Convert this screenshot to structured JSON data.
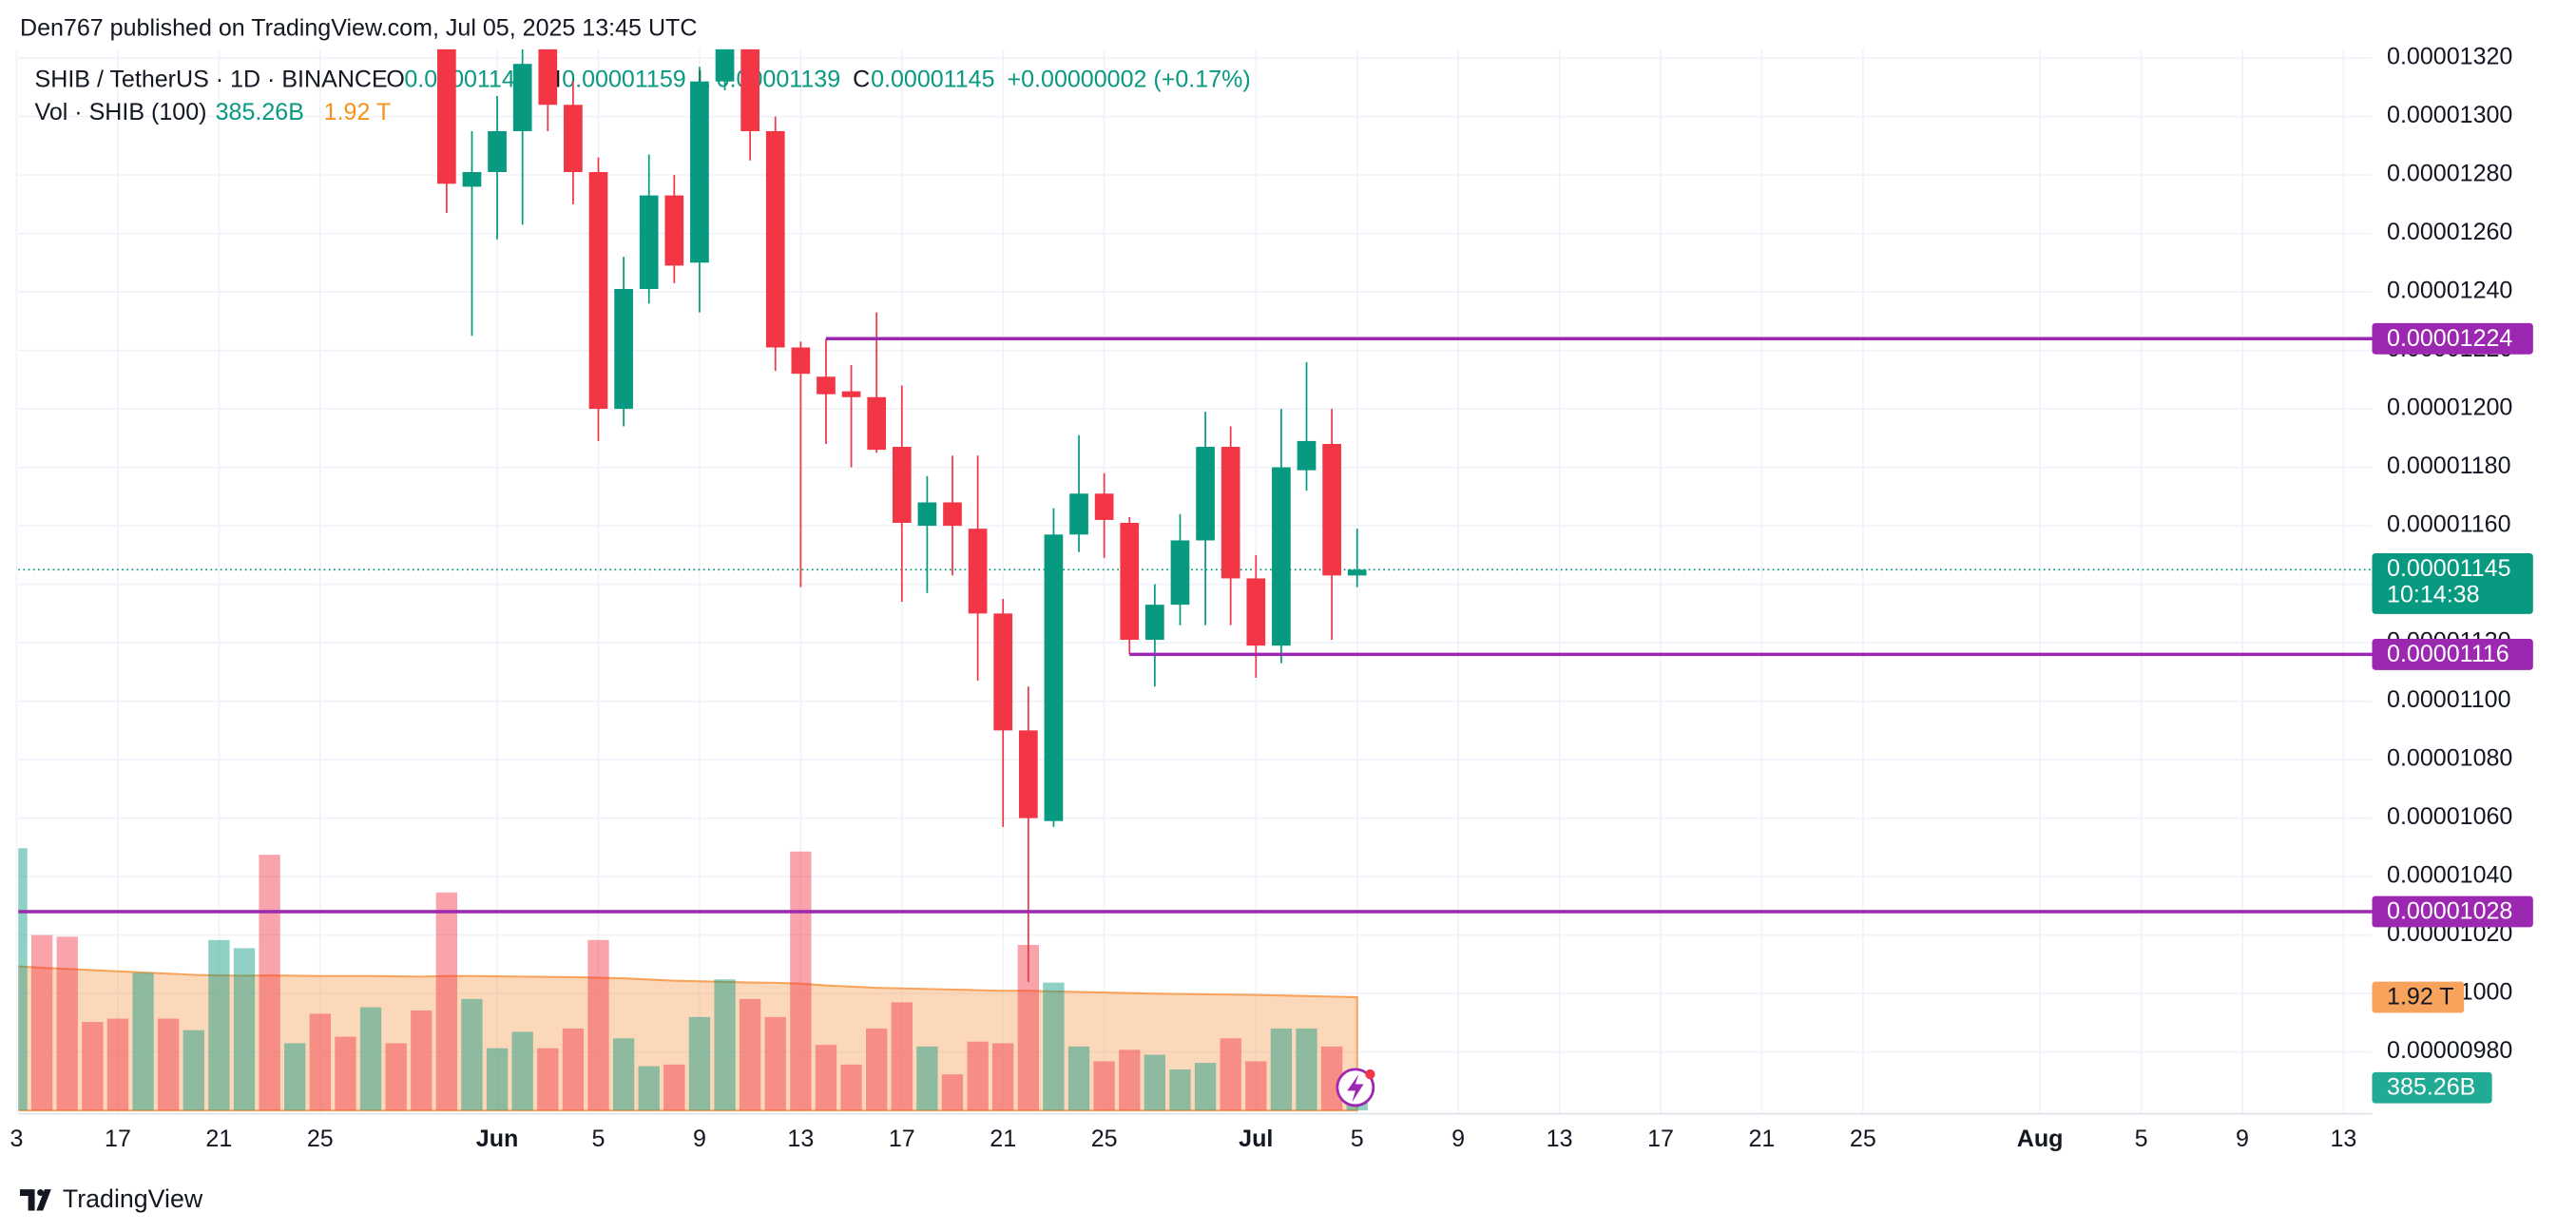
{
  "header": {
    "attribution": "Den767 published on TradingView.com, Jul 05, 2025 13:45 UTC",
    "footer": "TradingView"
  },
  "chart_data": {
    "type": "candlestick",
    "symbol": "SHIB / TetherUS · 1D · BINANCE",
    "legend_labels": {
      "open": "O",
      "high": "H",
      "low": "L",
      "close": "C"
    },
    "change": "+0.00000002 (+0.17%)",
    "countdown": "10:14:38",
    "x": [
      "2025-05-13",
      "2025-05-14",
      "2025-05-15",
      "2025-05-16",
      "2025-05-17",
      "2025-05-18",
      "2025-05-19",
      "2025-05-20",
      "2025-05-21",
      "2025-05-22",
      "2025-05-23",
      "2025-05-24",
      "2025-05-25",
      "2025-05-26",
      "2025-05-27",
      "2025-05-28",
      "2025-05-29",
      "2025-05-30",
      "2025-05-31",
      "2025-06-01",
      "2025-06-02",
      "2025-06-03",
      "2025-06-04",
      "2025-06-05",
      "2025-06-06",
      "2025-06-07",
      "2025-06-08",
      "2025-06-09",
      "2025-06-10",
      "2025-06-11",
      "2025-06-12",
      "2025-06-13",
      "2025-06-14",
      "2025-06-15",
      "2025-06-16",
      "2025-06-17",
      "2025-06-18",
      "2025-06-19",
      "2025-06-20",
      "2025-06-21",
      "2025-06-22",
      "2025-06-23",
      "2025-06-24",
      "2025-06-25",
      "2025-06-26",
      "2025-06-27",
      "2025-06-28",
      "2025-06-29",
      "2025-06-30",
      "2025-07-01",
      "2025-07-02",
      "2025-07-03",
      "2025-07-04",
      "2025-07-05"
    ],
    "open": [
      null,
      null,
      null,
      null,
      null,
      null,
      null,
      null,
      null,
      null,
      null,
      null,
      null,
      null,
      null,
      null,
      null,
      1.328e-05,
      1.276e-05,
      1.281e-05,
      1.295e-05,
      1.328e-05,
      1.304e-05,
      1.281e-05,
      1.2e-05,
      1.241e-05,
      1.273e-05,
      1.25e-05,
      1.312e-05,
      1.326e-05,
      1.295e-05,
      1.221e-05,
      1.211e-05,
      1.206e-05,
      1.204e-05,
      1.187e-05,
      1.16e-05,
      1.168e-05,
      1.159e-05,
      1.13e-05,
      1.09e-05,
      1.059e-05,
      1.157e-05,
      1.171e-05,
      1.161e-05,
      1.121e-05,
      1.133e-05,
      1.155e-05,
      1.187e-05,
      1.142e-05,
      1.119e-05,
      1.179e-05,
      1.188e-05,
      1.143e-05
    ],
    "high": [
      null,
      null,
      null,
      null,
      null,
      null,
      null,
      null,
      null,
      null,
      null,
      null,
      null,
      null,
      null,
      null,
      null,
      1.335e-05,
      1.295e-05,
      1.307e-05,
      1.324e-05,
      1.33e-05,
      1.312e-05,
      1.286e-05,
      1.252e-05,
      1.287e-05,
      1.28e-05,
      1.317e-05,
      1.335e-05,
      1.332e-05,
      1.3e-05,
      1.223e-05,
      1.224e-05,
      1.215e-05,
      1.233e-05,
      1.208e-05,
      1.177e-05,
      1.184e-05,
      1.184e-05,
      1.135e-05,
      1.105e-05,
      1.166e-05,
      1.191e-05,
      1.178e-05,
      1.163e-05,
      1.14e-05,
      1.164e-05,
      1.199e-05,
      1.194e-05,
      1.15e-05,
      1.2e-05,
      1.216e-05,
      1.2e-05,
      1.159e-05
    ],
    "low": [
      null,
      null,
      null,
      null,
      null,
      null,
      null,
      null,
      null,
      null,
      null,
      null,
      null,
      null,
      null,
      null,
      null,
      1.267e-05,
      1.225e-05,
      1.258e-05,
      1.263e-05,
      1.295e-05,
      1.27e-05,
      1.189e-05,
      1.194e-05,
      1.236e-05,
      1.243e-05,
      1.233e-05,
      1.309e-05,
      1.285e-05,
      1.213e-05,
      1.139e-05,
      1.188e-05,
      1.18e-05,
      1.185e-05,
      1.134e-05,
      1.137e-05,
      1.143e-05,
      1.107e-05,
      1.057e-05,
      1.004e-05,
      1.057e-05,
      1.151e-05,
      1.149e-05,
      1.116e-05,
      1.105e-05,
      1.126e-05,
      1.126e-05,
      1.126e-05,
      1.108e-05,
      1.113e-05,
      1.172e-05,
      1.121e-05,
      1.139e-05
    ],
    "close": [
      null,
      null,
      null,
      null,
      null,
      null,
      null,
      null,
      null,
      null,
      null,
      null,
      null,
      null,
      null,
      null,
      null,
      1.277e-05,
      1.281e-05,
      1.295e-05,
      1.318e-05,
      1.304e-05,
      1.281e-05,
      1.2e-05,
      1.241e-05,
      1.273e-05,
      1.249e-05,
      1.312e-05,
      1.326e-05,
      1.295e-05,
      1.221e-05,
      1.212e-05,
      1.205e-05,
      1.204e-05,
      1.186e-05,
      1.161e-05,
      1.168e-05,
      1.16e-05,
      1.13e-05,
      1.09e-05,
      1.06e-05,
      1.157e-05,
      1.171e-05,
      1.162e-05,
      1.121e-05,
      1.133e-05,
      1.155e-05,
      1.187e-05,
      1.142e-05,
      1.119e-05,
      1.18e-05,
      1.189e-05,
      1.143e-05,
      1.145e-05
    ],
    "up_color": "#089981",
    "down_color": "#f23645",
    "ylim": [
      9.6e-06,
      1.323e-05
    ],
    "yticks": [
      {
        "value": 9.8e-06,
        "label": "0.00000980"
      },
      {
        "value": 1e-05,
        "label": "0.00001000"
      },
      {
        "value": 1.02e-05,
        "label": "0.00001020"
      },
      {
        "value": 1.04e-05,
        "label": "0.00001040"
      },
      {
        "value": 1.06e-05,
        "label": "0.00001060"
      },
      {
        "value": 1.08e-05,
        "label": "0.00001080"
      },
      {
        "value": 1.1e-05,
        "label": "0.00001100"
      },
      {
        "value": 1.12e-05,
        "label": "0.00001120"
      },
      {
        "value": 1.14e-05,
        "label": "0.00001140"
      },
      {
        "value": 1.16e-05,
        "label": "0.00001160"
      },
      {
        "value": 1.18e-05,
        "label": "0.00001180"
      },
      {
        "value": 1.2e-05,
        "label": "0.00001200"
      },
      {
        "value": 1.22e-05,
        "label": "0.00001220"
      },
      {
        "value": 1.24e-05,
        "label": "0.00001240"
      },
      {
        "value": 1.26e-05,
        "label": "0.00001260"
      },
      {
        "value": 1.28e-05,
        "label": "0.00001280"
      },
      {
        "value": 1.3e-05,
        "label": "0.00001300"
      },
      {
        "value": 1.32e-05,
        "label": "0.00001320"
      }
    ],
    "xlim": [
      "2025-05-13",
      "2025-08-14"
    ],
    "xticks": [
      {
        "value": "2025-05-13",
        "label": "3"
      },
      {
        "value": "2025-05-17",
        "label": "17"
      },
      {
        "value": "2025-05-21",
        "label": "21"
      },
      {
        "value": "2025-05-25",
        "label": "25"
      },
      {
        "value": "2025-06-01",
        "label": "Jun"
      },
      {
        "value": "2025-06-05",
        "label": "5"
      },
      {
        "value": "2025-06-09",
        "label": "9"
      },
      {
        "value": "2025-06-13",
        "label": "13"
      },
      {
        "value": "2025-06-17",
        "label": "17"
      },
      {
        "value": "2025-06-21",
        "label": "21"
      },
      {
        "value": "2025-06-25",
        "label": "25"
      },
      {
        "value": "2025-07-01",
        "label": "Jul"
      },
      {
        "value": "2025-07-05",
        "label": "5"
      },
      {
        "value": "2025-07-09",
        "label": "9"
      },
      {
        "value": "2025-07-13",
        "label": "13"
      },
      {
        "value": "2025-07-17",
        "label": "17"
      },
      {
        "value": "2025-07-21",
        "label": "21"
      },
      {
        "value": "2025-07-25",
        "label": "25"
      },
      {
        "value": "2025-08-01",
        "label": "Aug"
      },
      {
        "value": "2025-08-05",
        "label": "5"
      },
      {
        "value": "2025-08-09",
        "label": "9"
      },
      {
        "value": "2025-08-13",
        "label": "13"
      }
    ],
    "grid": true,
    "levels": [
      {
        "value": 1.224e-05,
        "start": "2025-06-14"
      },
      {
        "value": 1.116e-05,
        "start": "2025-06-26"
      },
      {
        "value": 1.028e-05,
        "start": "2025-05-13"
      }
    ],
    "level_color": "#9c27b0",
    "volume": {
      "name": "Vol · SHIB (100)",
      "ylim": [
        0,
        18000000000000
      ],
      "values": [
        4448000000000,
        2975000000000,
        2947000000000,
        1501000000000,
        1557000000000,
        2335000000000,
        1557000000000,
        1362000000000,
        2891000000000,
        2752000000000,
        4337000000000,
        1140000000000,
        1640000000000,
        1251000000000,
        1751000000000,
        1140000000000,
        1696000000000,
        3697000000000,
        1890000000000,
        1056000000000,
        1334000000000,
        1056000000000,
        1390000000000,
        2891000000000,
        1223000000000,
        751000000000,
        778000000000,
        1585000000000,
        2224000000000,
        1890000000000,
        1585000000000,
        4392000000000,
        1112000000000,
        778000000000,
        1390000000000,
        1835000000000,
        1084000000000,
        612000000000,
        1168000000000,
        1140000000000,
        2808000000000,
        2168000000000,
        1084000000000,
        834000000000,
        1029000000000,
        945000000000,
        695000000000,
        806000000000,
        1223000000000,
        834000000000,
        1390000000000,
        1390000000000,
        1084000000000,
        385260000000
      ],
      "value_labels": [
        null,
        null,
        null,
        null,
        null,
        null,
        null,
        null,
        null,
        null,
        null,
        null,
        null,
        null,
        null,
        null,
        null,
        null,
        null,
        null,
        null,
        null,
        null,
        null,
        null,
        null,
        null,
        null,
        null,
        null,
        null,
        null,
        null,
        null,
        null,
        null,
        null,
        null,
        null,
        null,
        null,
        null,
        null,
        null,
        null,
        null,
        null,
        null,
        null,
        null,
        null,
        null,
        null,
        "385.26B"
      ],
      "colors": [
        "#089981",
        "#f23645",
        "#f23645",
        "#f23645",
        "#f23645",
        "#089981",
        "#f23645",
        "#089981",
        "#089981",
        "#089981",
        "#f23645",
        "#089981",
        "#f23645",
        "#f23645",
        "#089981",
        "#f23645",
        "#f23645",
        "#f23645",
        "#089981",
        "#089981",
        "#089981",
        "#f23645",
        "#f23645",
        "#f23645",
        "#089981",
        "#089981",
        "#f23645",
        "#089981",
        "#089981",
        "#f23645",
        "#f23645",
        "#f23645",
        "#f23645",
        "#f23645",
        "#f23645",
        "#f23645",
        "#089981",
        "#f23645",
        "#f23645",
        "#f23645",
        "#f23645",
        "#089981",
        "#089981",
        "#f23645",
        "#f23645",
        "#089981",
        "#089981",
        "#089981",
        "#f23645",
        "#f23645",
        "#089981",
        "#089981",
        "#f23645",
        "#089981"
      ]
    },
    "volume_ma": {
      "color": "#f7a35c",
      "values": [
        2446000000000,
        2420000000000,
        2400000000000,
        2380000000000,
        2360000000000,
        2340000000000,
        2320000000000,
        2300000000000,
        2290000000000,
        2285000000000,
        2290000000000,
        2285000000000,
        2280000000000,
        2280000000000,
        2280000000000,
        2275000000000,
        2270000000000,
        2280000000000,
        2280000000000,
        2275000000000,
        2270000000000,
        2265000000000,
        2260000000000,
        2250000000000,
        2240000000000,
        2220000000000,
        2200000000000,
        2190000000000,
        2180000000000,
        2170000000000,
        2165000000000,
        2150000000000,
        2120000000000,
        2100000000000,
        2080000000000,
        2070000000000,
        2060000000000,
        2050000000000,
        2040000000000,
        2030000000000,
        2030000000000,
        2020000000000,
        2010000000000,
        2000000000000,
        1990000000000,
        1980000000000,
        1975000000000,
        1970000000000,
        1965000000000,
        1960000000000,
        1950000000000,
        1940000000000,
        1930000000000,
        1920000000000
      ],
      "value_labels": [
        null,
        null,
        null,
        null,
        null,
        null,
        null,
        null,
        null,
        null,
        null,
        null,
        null,
        null,
        null,
        null,
        null,
        null,
        null,
        null,
        null,
        null,
        null,
        null,
        null,
        null,
        null,
        null,
        null,
        null,
        null,
        null,
        null,
        null,
        null,
        null,
        null,
        null,
        null,
        null,
        null,
        null,
        null,
        null,
        null,
        null,
        null,
        null,
        null,
        null,
        null,
        null,
        null,
        "1.92 T"
      ]
    }
  }
}
